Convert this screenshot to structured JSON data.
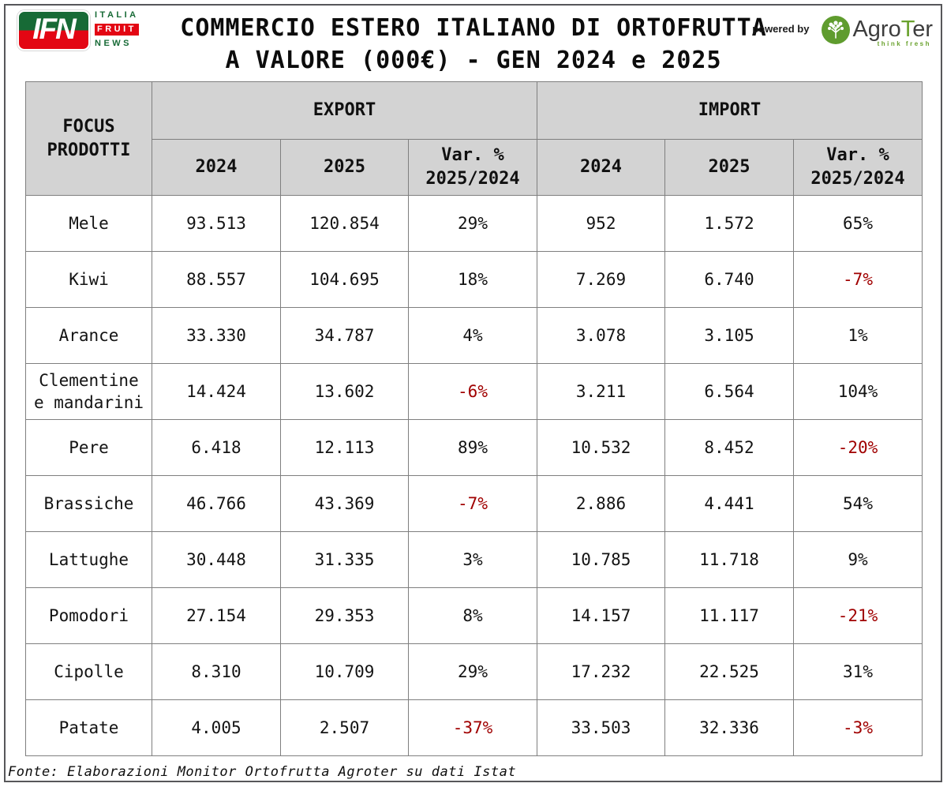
{
  "header": {
    "title_line1": "COMMERCIO ESTERO ITALIANO DI ORTOFRUTTA",
    "title_line2": "A VALORE (000€) - GEN 2024 e 2025",
    "powered_by": "powered by",
    "ifn_logo": {
      "letters": "IFN",
      "word1": "ITALIA",
      "word2": "FRUIT",
      "word3": "NEWS"
    },
    "agroter_logo": {
      "part1": "Agro",
      "part2": "T",
      "part3": "er",
      "tagline": "think fresh"
    }
  },
  "table": {
    "corner_header": "FOCUS\nPRODOTTI",
    "groups": [
      "EXPORT",
      "IMPORT"
    ],
    "sub_headers": [
      "2024",
      "2025",
      "Var. %\n2025/2024"
    ],
    "rows": [
      {
        "product": "Mele",
        "export": [
          "93.513",
          "120.854",
          "29%"
        ],
        "import": [
          "952",
          "1.572",
          "65%"
        ]
      },
      {
        "product": "Kiwi",
        "export": [
          "88.557",
          "104.695",
          "18%"
        ],
        "import": [
          "7.269",
          "6.740",
          "-7%"
        ]
      },
      {
        "product": "Arance",
        "export": [
          "33.330",
          "34.787",
          "4%"
        ],
        "import": [
          "3.078",
          "3.105",
          "1%"
        ]
      },
      {
        "product": "Clementine e mandarini",
        "export": [
          "14.424",
          "13.602",
          "-6%"
        ],
        "import": [
          "3.211",
          "6.564",
          "104%"
        ]
      },
      {
        "product": "Pere",
        "export": [
          "6.418",
          "12.113",
          "89%"
        ],
        "import": [
          "10.532",
          "8.452",
          "-20%"
        ]
      },
      {
        "product": "Brassiche",
        "export": [
          "46.766",
          "43.369",
          "-7%"
        ],
        "import": [
          "2.886",
          "4.441",
          "54%"
        ]
      },
      {
        "product": "Lattughe",
        "export": [
          "30.448",
          "31.335",
          "3%"
        ],
        "import": [
          "10.785",
          "11.718",
          "9%"
        ]
      },
      {
        "product": "Pomodori",
        "export": [
          "27.154",
          "29.353",
          "8%"
        ],
        "import": [
          "14.157",
          "11.117",
          "-21%"
        ]
      },
      {
        "product": "Cipolle",
        "export": [
          "8.310",
          "10.709",
          "29%"
        ],
        "import": [
          "17.232",
          "22.525",
          "31%"
        ]
      },
      {
        "product": "Patate",
        "export": [
          "4.005",
          "2.507",
          "-37%"
        ],
        "import": [
          "33.503",
          "32.336",
          "-3%"
        ]
      }
    ]
  },
  "footer": {
    "source": "Fonte: Elaborazioni Monitor Ortofrutta Agroter su dati Istat"
  },
  "colors": {
    "negative_text": "#a00000",
    "header_background": "#d3d3d3",
    "cell_border": "#7f7f7f",
    "ifn_green": "#176a36",
    "ifn_red": "#e30613",
    "agroter_green": "#5f9c2e"
  },
  "chart_data": {
    "type": "table",
    "title": "COMMERCIO ESTERO ITALIANO DI ORTOFRUTTA A VALORE (000€) - GEN 2024 e 2025",
    "units": "000€ (thousands of euros)",
    "columns": [
      "FOCUS PRODOTTI",
      "EXPORT 2024",
      "EXPORT 2025",
      "EXPORT Var. % 2025/2024",
      "IMPORT 2024",
      "IMPORT 2025",
      "IMPORT Var. % 2025/2024"
    ],
    "rows": [
      [
        "Mele",
        93513,
        120854,
        "29%",
        952,
        1572,
        "65%"
      ],
      [
        "Kiwi",
        88557,
        104695,
        "18%",
        7269,
        6740,
        "-7%"
      ],
      [
        "Arance",
        33330,
        34787,
        "4%",
        3078,
        3105,
        "1%"
      ],
      [
        "Clementine e mandarini",
        14424,
        13602,
        "-6%",
        3211,
        6564,
        "104%"
      ],
      [
        "Pere",
        6418,
        12113,
        "89%",
        10532,
        8452,
        "-20%"
      ],
      [
        "Brassiche",
        46766,
        43369,
        "-7%",
        2886,
        4441,
        "54%"
      ],
      [
        "Lattughe",
        30448,
        31335,
        "3%",
        10785,
        11718,
        "9%"
      ],
      [
        "Pomodori",
        27154,
        29353,
        "8%",
        14157,
        11117,
        "-21%"
      ],
      [
        "Cipolle",
        8310,
        10709,
        "29%",
        17232,
        22525,
        "31%"
      ],
      [
        "Patate",
        4005,
        2507,
        "-37%",
        33503,
        32336,
        "-3%"
      ]
    ],
    "source": "Fonte: Elaborazioni Monitor Ortofrutta Agroter su dati Istat"
  }
}
